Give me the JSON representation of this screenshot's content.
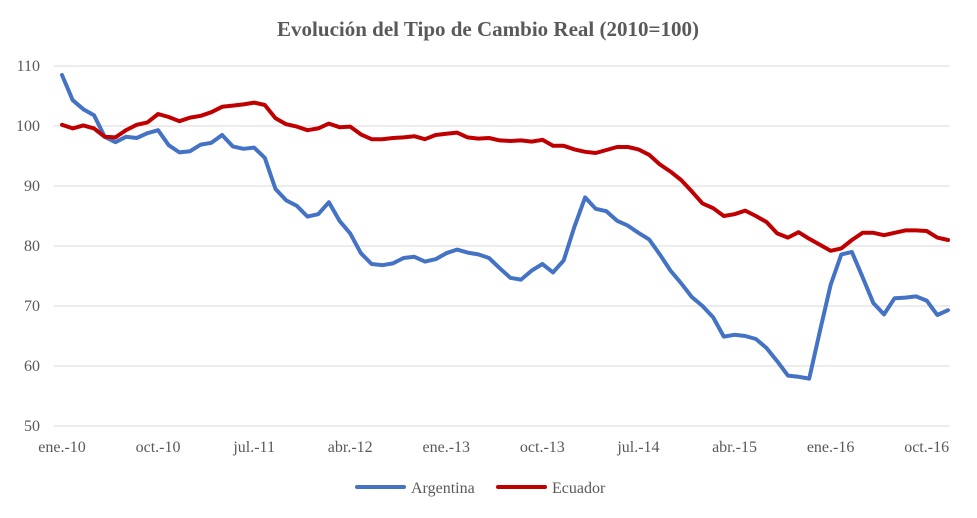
{
  "chart_data": {
    "type": "line",
    "title": "Evolución del Tipo de Cambio Real (2010=100)",
    "xlabel": "",
    "ylabel": "",
    "ylim": [
      50,
      110
    ],
    "yticks": [
      50,
      60,
      70,
      80,
      90,
      100,
      110
    ],
    "x_tick_labels": [
      "ene.-10",
      "oct.-10",
      "jul.-11",
      "abr.-12",
      "ene.-13",
      "oct.-13",
      "jul.-14",
      "abr.-15",
      "ene.-16",
      "oct.-16"
    ],
    "x_tick_step_months": 9,
    "grid": "horizontal",
    "legend_position": "bottom",
    "series": [
      {
        "name": "Argentina",
        "color": "#4472c4",
        "values": [
          108.5,
          104.3,
          102.8,
          101.8,
          98.2,
          97.3,
          98.2,
          98.0,
          98.8,
          99.3,
          96.8,
          95.6,
          95.8,
          96.9,
          97.2,
          98.5,
          96.6,
          96.2,
          96.4,
          94.7,
          89.5,
          87.6,
          86.7,
          84.9,
          85.3,
          87.3,
          84.2,
          82.1,
          78.8,
          77.0,
          76.8,
          77.1,
          78.0,
          78.2,
          77.4,
          77.8,
          78.8,
          79.4,
          78.9,
          78.6,
          78.0,
          76.3,
          74.7,
          74.4,
          75.9,
          77.0,
          75.6,
          77.6,
          83.2,
          88.1,
          86.2,
          85.8,
          84.2,
          83.4,
          82.2,
          81.1,
          78.6,
          75.9,
          73.8,
          71.5,
          70.0,
          68.1,
          64.9,
          65.2,
          65.0,
          64.5,
          63.0,
          60.8,
          58.4,
          58.2,
          57.9,
          65.8,
          73.5,
          78.6,
          79.0,
          74.8,
          70.5,
          68.6,
          71.3,
          71.4,
          71.6,
          70.9,
          68.5,
          69.3
        ]
      },
      {
        "name": "Ecuador",
        "color": "#c00000",
        "values": [
          100.2,
          99.6,
          100.1,
          99.6,
          98.2,
          98.1,
          99.3,
          100.2,
          100.6,
          102.0,
          101.5,
          100.8,
          101.4,
          101.7,
          102.3,
          103.2,
          103.4,
          103.6,
          103.9,
          103.5,
          101.3,
          100.3,
          99.9,
          99.3,
          99.6,
          100.4,
          99.8,
          99.9,
          98.6,
          97.8,
          97.8,
          98.0,
          98.1,
          98.3,
          97.8,
          98.5,
          98.7,
          98.9,
          98.1,
          97.9,
          98.0,
          97.6,
          97.5,
          97.6,
          97.4,
          97.7,
          96.7,
          96.7,
          96.1,
          95.7,
          95.5,
          96.0,
          96.5,
          96.5,
          96.1,
          95.2,
          93.6,
          92.4,
          91.0,
          89.1,
          87.1,
          86.3,
          85.0,
          85.3,
          85.9,
          85.0,
          84.0,
          82.1,
          81.4,
          82.3,
          81.2,
          80.2,
          79.2,
          79.6,
          81.0,
          82.2,
          82.2,
          81.8,
          82.2,
          82.6,
          82.6,
          82.5,
          81.4,
          81.0
        ]
      }
    ]
  }
}
